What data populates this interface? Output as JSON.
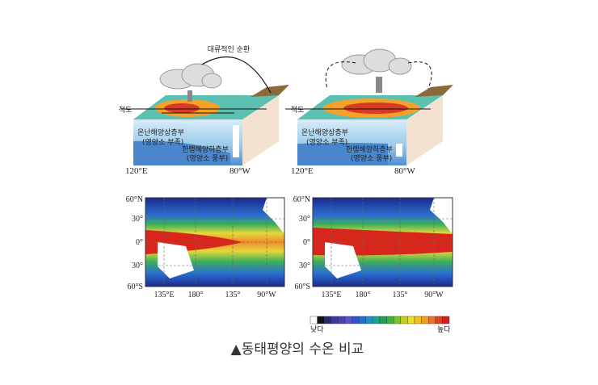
{
  "panels": [
    {
      "circulation_label": "대류적인 순환",
      "equator_label": "적도",
      "warm_layer": [
        "온난해양상층부",
        "(영양소 부족)"
      ],
      "cold_layer": [
        "한랭해양하층부",
        "(영양소 풍부)"
      ],
      "west_label": "120°E",
      "east_label": "80°W"
    },
    {
      "equator_label": "적도",
      "warm_layer": [
        "온난해양상층부",
        "(영양소 부족)"
      ],
      "cold_layer": [
        "한랭해양하층부",
        "(영양소 풍부)"
      ],
      "west_label": "120°E",
      "east_label": "80°W"
    }
  ],
  "maps": [
    {
      "lat_labels": [
        "60°N",
        "30°",
        "0°",
        "30°",
        "60°S"
      ],
      "lon_labels": [
        "135°E",
        "180°",
        "135°",
        "90°W"
      ]
    },
    {
      "lat_labels": [
        "60°N",
        "30°",
        "0°",
        "30°",
        "60°S"
      ],
      "lon_labels": [
        "135°E",
        "180°",
        "135°",
        "90°W"
      ]
    }
  ],
  "colorbar": {
    "low": "낮다",
    "high": "높다"
  },
  "caption": "▲동태평양의 수온 비교"
}
